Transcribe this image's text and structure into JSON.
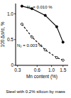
{
  "chart_data": {
    "type": "line",
    "subtitle": "Steel with 0.2% silicon by mass",
    "x_label": "Mn content (%)",
    "y_label": "100 Δσ/σ, %",
    "x": [
      0.35,
      0.5,
      0.8,
      1.2,
      1.5
    ],
    "series": [
      {
        "name": "N₂ = 0.010 %",
        "color": "#000000",
        "values": [
          1.15,
          1.1,
          0.97,
          0.75,
          0.45
        ],
        "marker": "filled",
        "line_style": "solid"
      },
      {
        "name": "N₂ = 0.003 %",
        "color": "#000000",
        "values": [
          0.8,
          0.55,
          0.3,
          0.15,
          0.1
        ],
        "marker": "open",
        "line_style": "dashed"
      }
    ],
    "log": "x",
    "xlim": [
      0.28,
      1.8
    ],
    "xticks": [
      0.3,
      0.6,
      {
        "value": 1,
        "label": "1.0"
      },
      1.5
    ],
    "ylim": [
      0,
      1.2
    ],
    "yticks": [
      0,
      0.5,
      {
        "value": 1,
        "label": "1.0"
      }
    ],
    "grid": false
  }
}
